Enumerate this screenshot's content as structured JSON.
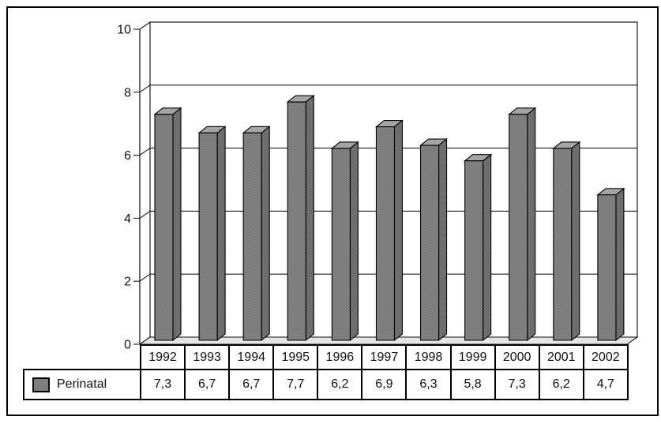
{
  "chart_data": {
    "type": "bar",
    "style": "3d-bars-grayscale-with-data-table",
    "title": "",
    "xlabel": "",
    "ylabel": "",
    "categories": [
      "1992",
      "1993",
      "1994",
      "1995",
      "1996",
      "1997",
      "1998",
      "1999",
      "2000",
      "2001",
      "2002"
    ],
    "series": [
      {
        "name": "Perinatal",
        "values": [
          7.3,
          6.7,
          6.7,
          7.7,
          6.2,
          6.9,
          6.3,
          5.8,
          7.3,
          6.2,
          4.7
        ],
        "labels": [
          "7,3",
          "6,7",
          "6,7",
          "7,7",
          "6,2",
          "6,9",
          "6,3",
          "5,8",
          "7,3",
          "6,2",
          "4,7"
        ]
      }
    ],
    "ylim": [
      0,
      10
    ],
    "yticks": [
      0,
      2,
      4,
      6,
      8,
      10
    ],
    "grid": true,
    "legend_position": "bottom-left-table-cell",
    "colors": {
      "background": "#ffffff",
      "bar_front_light": "#909090",
      "bar_front_dark": "#6c6c6c",
      "bar_side_light": "#7e7e7e",
      "bar_side_dark": "#5d5d5d",
      "bar_top_light": "#b5b5b5",
      "bar_top_dark": "#959595",
      "floor_light": "#f0f0f0",
      "floor_dark": "#d8d8d8",
      "outline": "#000000",
      "grid_line": "#1c1c1c",
      "text": "#111111"
    }
  }
}
